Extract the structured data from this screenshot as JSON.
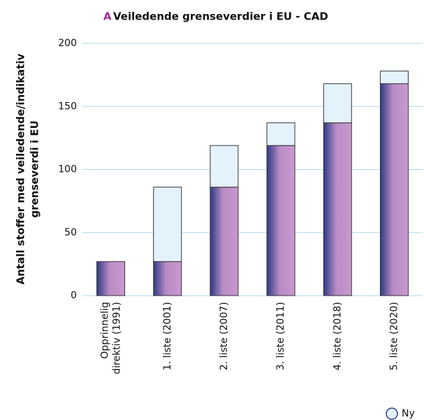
{
  "chart_data": {
    "type": "stacked_bar",
    "panel_label": "A",
    "title": "Veiledende grenseverdier i EU - CAD",
    "y_label": [
      "Antall stoffer med veiledende/indikativ",
      "grenseverdi i EU"
    ],
    "categories": [
      [
        "Opprinnelig",
        "direktiv (1991)"
      ],
      "1. liste (2001)",
      "2. liste (2007)",
      "3. liste (2011)",
      "4. liste (2018)",
      "5. liste (2020)"
    ],
    "series": [
      {
        "color": "#b98bc4",
        "values": [
          27,
          27,
          86,
          119,
          137,
          168
        ]
      },
      {
        "name": "Ny",
        "color": "#e4f2fc",
        "values": [
          0,
          59,
          33,
          18,
          31,
          10
        ]
      }
    ],
    "ylim": [
      0,
      200
    ],
    "yticks": [
      0,
      50,
      100,
      150,
      200
    ],
    "grid": true,
    "legend": "bottom-right"
  }
}
